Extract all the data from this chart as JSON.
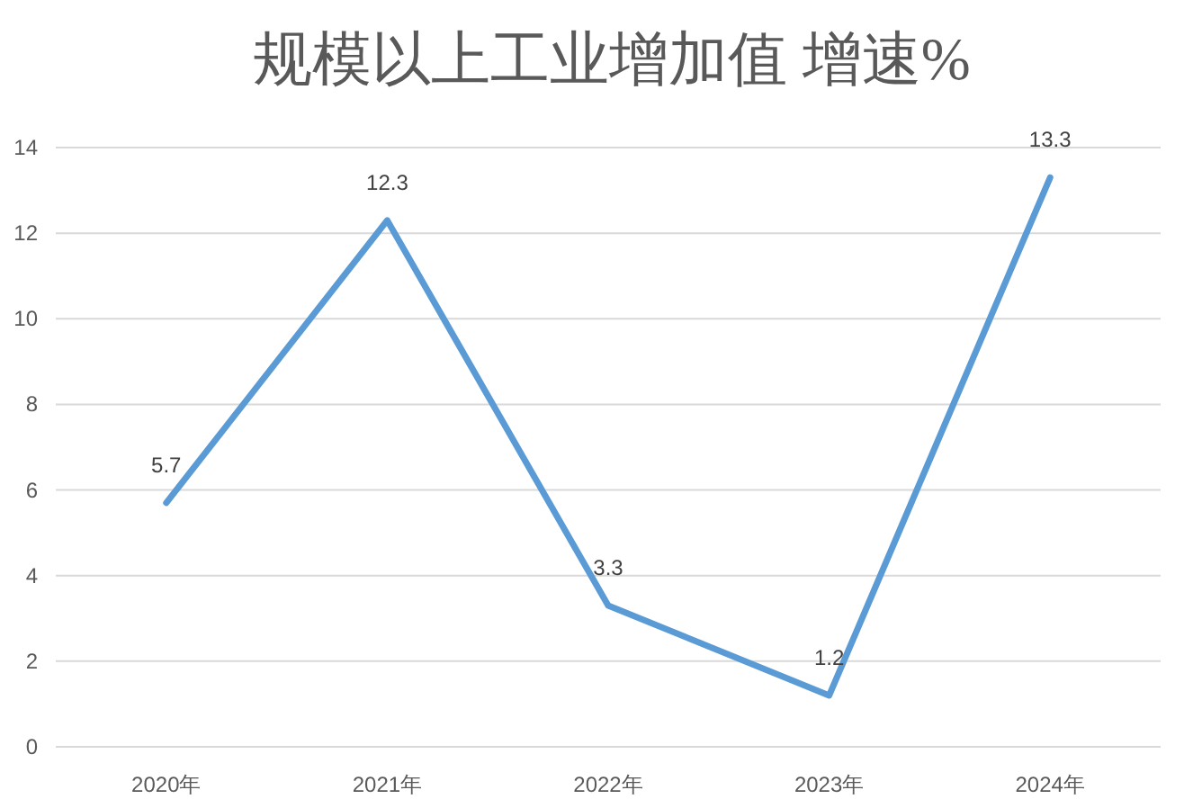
{
  "chart_data": {
    "type": "line",
    "title": "规模以上工业增加值 增速%",
    "categories": [
      "2020年",
      "2021年",
      "2022年",
      "2023年",
      "2024年"
    ],
    "series": [
      {
        "color": "#5b9bd5",
        "values": [
          5.7,
          12.3,
          3.3,
          1.2,
          13.3
        ]
      }
    ],
    "ylim": [
      0,
      14
    ],
    "yticks": [
      0,
      2,
      4,
      6,
      8,
      10,
      12,
      14
    ],
    "grid": "y",
    "data_labels": true
  }
}
